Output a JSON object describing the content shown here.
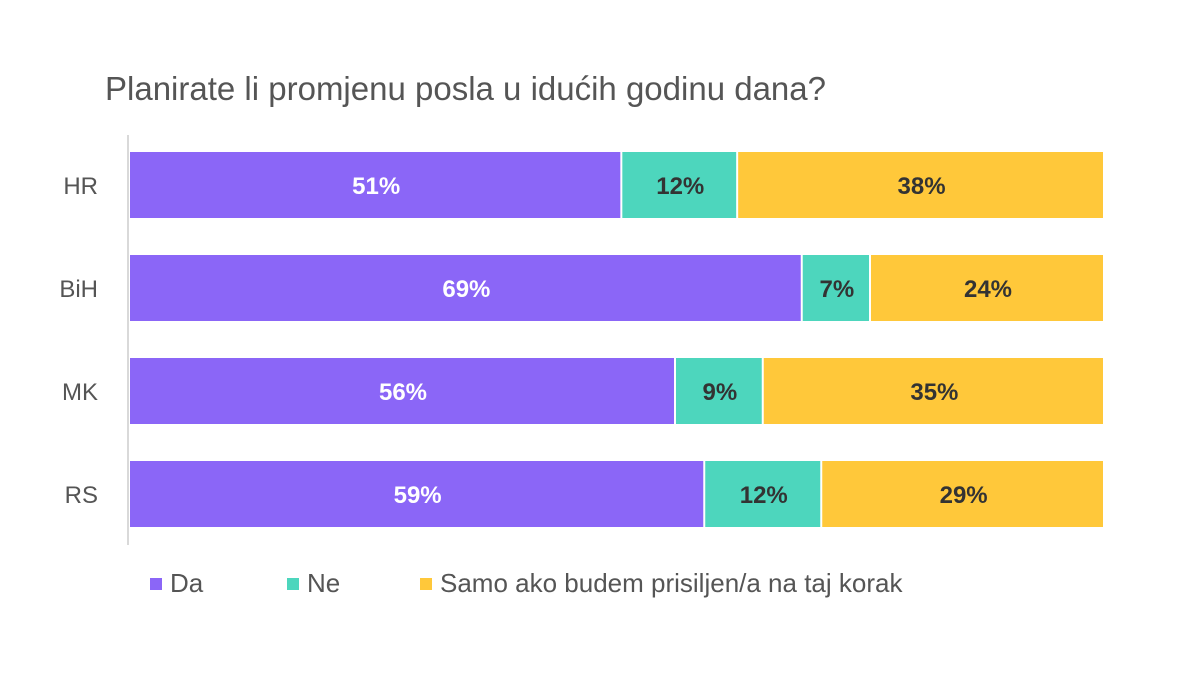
{
  "chart_data": {
    "type": "bar",
    "orientation": "horizontal",
    "stacked": true,
    "title": "Planirate li promjenu posla u idućih godinu dana?",
    "categories": [
      "HR",
      "BiH",
      "MK",
      "RS"
    ],
    "series": [
      {
        "name": "Da",
        "values": [
          51,
          69,
          56,
          59
        ],
        "color": "#8B66F7",
        "label_color": "#ffffff"
      },
      {
        "name": "Ne",
        "values": [
          12,
          7,
          9,
          12
        ],
        "color": "#4DD6BD",
        "label_color": "#333333"
      },
      {
        "name": "Samo ako budem prisiljen/a na taj korak",
        "values": [
          38,
          24,
          35,
          29
        ],
        "color": "#FFC83A",
        "label_color": "#333333"
      }
    ],
    "value_suffix": "%",
    "legend_position": "bottom",
    "grid": false
  }
}
